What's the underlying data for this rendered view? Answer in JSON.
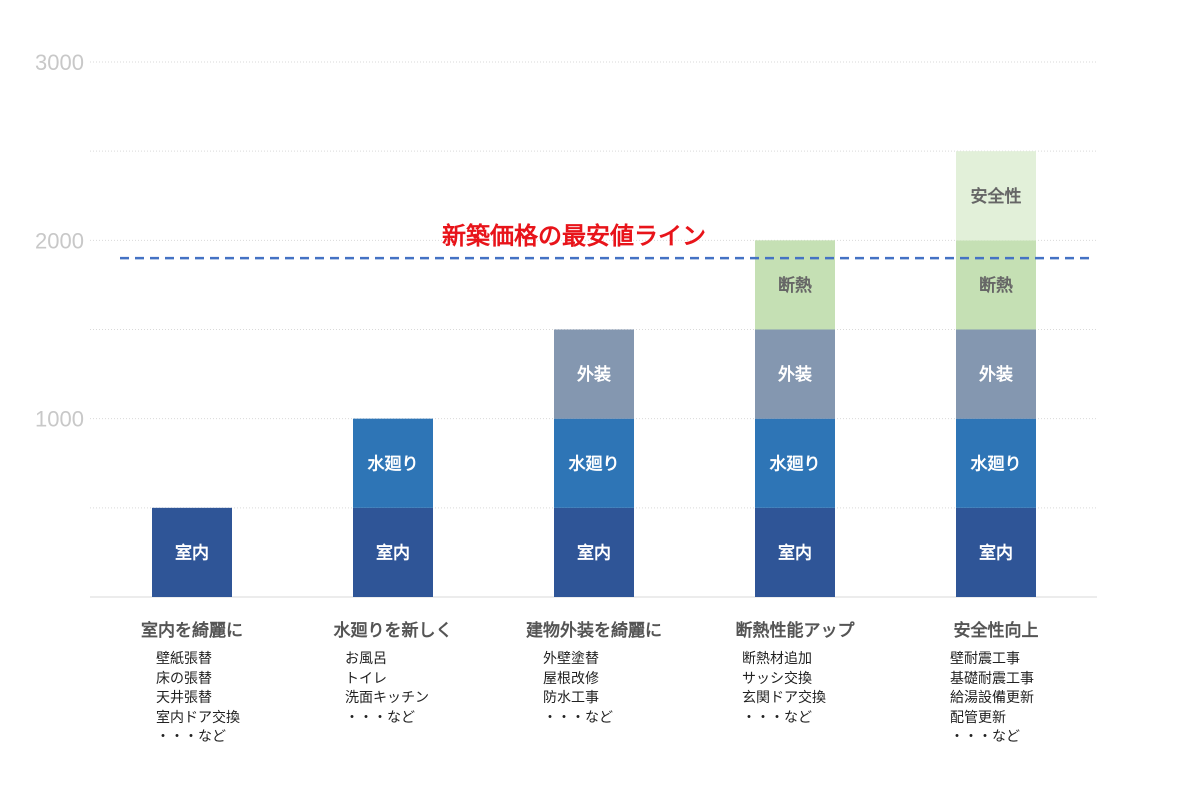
{
  "chart_data": {
    "type": "bar",
    "stacked": true,
    "ylim": [
      0,
      3000
    ],
    "yticks": [
      1000,
      2000,
      3000
    ],
    "grid": true,
    "categories": [
      {
        "title": "室内を綺麗に",
        "items": [
          "壁紙張替",
          "床の張替",
          "天井張替",
          "室内ドア交換",
          "・・・など"
        ]
      },
      {
        "title": "水廻りを新しく",
        "items": [
          "お風呂",
          "トイレ",
          "洗面キッチン",
          "・・・など"
        ]
      },
      {
        "title": "建物外装を綺麗に",
        "items": [
          "外壁塗替",
          "屋根改修",
          "防水工事",
          "・・・など"
        ]
      },
      {
        "title": "断熱性能アップ",
        "items": [
          "断熱材追加",
          "サッシ交換",
          "玄関ドア交換",
          "・・・など"
        ]
      },
      {
        "title": "安全性向上",
        "items": [
          "壁耐震工事",
          "基礎耐震工事",
          "給湯設備更新",
          "配管更新",
          "・・・など"
        ]
      }
    ],
    "series": [
      {
        "name": "室内",
        "color": "#2f5597",
        "values": [
          500,
          500,
          500,
          500,
          500
        ]
      },
      {
        "name": "水廻り",
        "color": "#2e75b6",
        "values": [
          0,
          500,
          500,
          500,
          500
        ]
      },
      {
        "name": "外装",
        "color": "#8497b0",
        "values": [
          0,
          0,
          500,
          500,
          500
        ]
      },
      {
        "name": "断熱",
        "color": "#c5e0b4",
        "values": [
          0,
          0,
          0,
          500,
          500
        ]
      },
      {
        "name": "安全性",
        "color": "#e2f0d9",
        "values": [
          0,
          0,
          0,
          0,
          500
        ]
      }
    ],
    "reference_line": {
      "label": "新築価格の最安値ライン",
      "value": 1900,
      "color": "#4472c4",
      "label_color": "#e8141a"
    }
  }
}
